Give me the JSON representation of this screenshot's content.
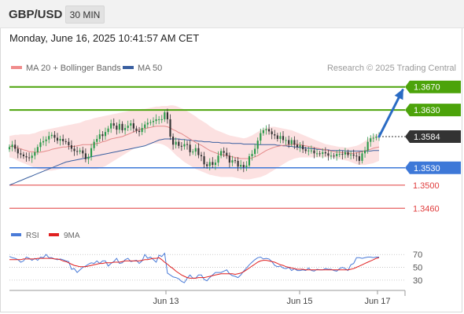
{
  "header": {
    "symbol": "GBP/USD",
    "interval": "30 MIN"
  },
  "timestamp": "Monday, June 16, 2025 10:41:57 AM CET",
  "legend": {
    "ma20": {
      "label": "MA 20 + Bollinger Bands",
      "color": "#f08c8c"
    },
    "ma50": {
      "label": "MA 50",
      "color": "#3a5fa0"
    },
    "source": "Research © 2025 Trading Central"
  },
  "indicator_legend": {
    "rsi": {
      "label": "RSI",
      "color": "#4a7bd8"
    },
    "ma9": {
      "label": "9MA",
      "color": "#e02020"
    }
  },
  "chart_data": [
    {
      "type": "candlestick",
      "x_ticks": [
        "Jun 13",
        "Jun 15",
        "Jun 17"
      ],
      "ylim": [
        1.344,
        1.369
      ],
      "current_price": 1.3584,
      "levels": [
        {
          "value": 1.367,
          "label": "1.3670",
          "role": "resistance",
          "color": "#4ca30a"
        },
        {
          "value": 1.363,
          "label": "1.3630",
          "role": "resistance",
          "color": "#4ca30a"
        },
        {
          "value": 1.3584,
          "label": "1.3584",
          "role": "current",
          "color": "#333333"
        },
        {
          "value": 1.353,
          "label": "1.3530",
          "role": "pivot",
          "color": "#3d78d8"
        },
        {
          "value": 1.35,
          "label": "1.3500",
          "role": "support",
          "color": "#e03c3c"
        },
        {
          "value": 1.346,
          "label": "1.3460",
          "role": "support",
          "color": "#e03c3c"
        }
      ],
      "forecast_arrow": {
        "from": 1.3584,
        "to": 1.367,
        "color": "#2a6bc4"
      },
      "close": [
        1.3566,
        1.357,
        1.3563,
        1.3555,
        1.3553,
        1.355,
        1.3548,
        1.3547,
        1.3551,
        1.3557,
        1.3566,
        1.3574,
        1.3576,
        1.3579,
        1.3585,
        1.3587,
        1.3582,
        1.3577,
        1.358,
        1.3576,
        1.3575,
        1.3569,
        1.3563,
        1.3559,
        1.3558,
        1.356,
        1.3555,
        1.3545,
        1.3549,
        1.3564,
        1.3575,
        1.358,
        1.3588,
        1.3585,
        1.3592,
        1.3598,
        1.3607,
        1.3603,
        1.3596,
        1.3606,
        1.3595,
        1.3599,
        1.3603,
        1.3607,
        1.3598,
        1.3594,
        1.3592,
        1.3599,
        1.3605,
        1.3608,
        1.3609,
        1.3611,
        1.3614,
        1.3614,
        1.3614,
        1.3626,
        1.3614,
        1.3584,
        1.357,
        1.3575,
        1.3568,
        1.3567,
        1.3571,
        1.357,
        1.3557,
        1.3558,
        1.3564,
        1.3552,
        1.355,
        1.3536,
        1.3533,
        1.354,
        1.3535,
        1.3539,
        1.3551,
        1.3559,
        1.3556,
        1.3551,
        1.3539,
        1.3543,
        1.3542,
        1.3532,
        1.3535,
        1.3531,
        1.3534,
        1.355,
        1.3554,
        1.3563,
        1.3577,
        1.359,
        1.3595,
        1.3597,
        1.3593,
        1.3588,
        1.3586,
        1.358,
        1.3585,
        1.3578,
        1.3578,
        1.3571,
        1.3578,
        1.357,
        1.3566,
        1.3569,
        1.3562,
        1.3559,
        1.356,
        1.356,
        1.3555,
        1.3555,
        1.3554,
        1.3557,
        1.3555,
        1.3551,
        1.3551,
        1.355,
        1.3554,
        1.3554,
        1.3553,
        1.3557,
        1.3552,
        1.3553,
        1.3551,
        1.355,
        1.3542,
        1.3555,
        1.356,
        1.3575,
        1.3581,
        1.3582,
        1.3584,
        1.3585
      ],
      "ma20": [
        1.3567,
        1.3567,
        1.3566,
        1.3564,
        1.3563,
        1.3561,
        1.356,
        1.3558,
        1.3558,
        1.3557,
        1.3557,
        1.3557,
        1.3558,
        1.3559,
        1.356,
        1.3562,
        1.3563,
        1.3564,
        1.3565,
        1.3566,
        1.3566,
        1.3567,
        1.3567,
        1.3567,
        1.3568,
        1.3569,
        1.357,
        1.357,
        1.357,
        1.357,
        1.3571,
        1.3572,
        1.3573,
        1.3575,
        1.3576,
        1.3578,
        1.358,
        1.3581,
        1.3582,
        1.3583,
        1.3584,
        1.3586,
        1.3588,
        1.359,
        1.3592,
        1.3594,
        1.3596,
        1.3597,
        1.3598,
        1.3599,
        1.36,
        1.3601,
        1.3602,
        1.3602,
        1.3602,
        1.3602,
        1.3601,
        1.3599,
        1.3596,
        1.3594,
        1.3591,
        1.3589,
        1.3586,
        1.3583,
        1.358,
        1.3577,
        1.3574,
        1.3571,
        1.3569,
        1.3566,
        1.3563,
        1.356,
        1.3558,
        1.3556,
        1.3554,
        1.3553,
        1.3552,
        1.3551,
        1.355,
        1.3549,
        1.3548,
        1.3547,
        1.3546,
        1.3546,
        1.3546,
        1.3546,
        1.3547,
        1.3549,
        1.3551,
        1.3554,
        1.3557,
        1.356,
        1.3562,
        1.3564,
        1.3566,
        1.3567,
        1.3568,
        1.3569,
        1.3569,
        1.357,
        1.357,
        1.3571,
        1.3571,
        1.357,
        1.3569,
        1.3568,
        1.3567,
        1.3566,
        1.3565,
        1.3564,
        1.3563,
        1.3562,
        1.3561,
        1.356,
        1.3559,
        1.3558,
        1.3557,
        1.3557,
        1.3556,
        1.3556,
        1.3555,
        1.3555,
        1.3555,
        1.3556,
        1.3557,
        1.3558,
        1.3559,
        1.3561,
        1.3562,
        1.3564,
        1.3565,
        1.3566
      ],
      "bb_upper": [
        1.3585,
        1.3586,
        1.3587,
        1.3587,
        1.3588,
        1.3588,
        1.3588,
        1.3588,
        1.3589,
        1.359,
        1.3592,
        1.3594,
        1.3595,
        1.3596,
        1.3597,
        1.3598,
        1.3599,
        1.36,
        1.3601,
        1.3602,
        1.3603,
        1.3604,
        1.3605,
        1.3606,
        1.3607,
        1.3608,
        1.361,
        1.3612,
        1.3613,
        1.3614,
        1.3616,
        1.3617,
        1.3618,
        1.3619,
        1.362,
        1.3621,
        1.3622,
        1.3623,
        1.3624,
        1.3625,
        1.3626,
        1.3627,
        1.3628,
        1.3629,
        1.363,
        1.3631,
        1.3631,
        1.3632,
        1.3632,
        1.3633,
        1.3634,
        1.3635,
        1.3636,
        1.3636,
        1.3637,
        1.3637,
        1.3637,
        1.3638,
        1.3638,
        1.3637,
        1.3635,
        1.3633,
        1.3631,
        1.3628,
        1.3625,
        1.3622,
        1.3619,
        1.3615,
        1.3612,
        1.3609,
        1.3606,
        1.3602,
        1.3599,
        1.3596,
        1.3594,
        1.3592,
        1.359,
        1.3588,
        1.3586,
        1.3585,
        1.3584,
        1.3583,
        1.3582,
        1.3581,
        1.3582,
        1.3584,
        1.3586,
        1.3589,
        1.3592,
        1.3595,
        1.3597,
        1.3599,
        1.36,
        1.3601,
        1.3601,
        1.36,
        1.3599,
        1.3598,
        1.3597,
        1.3596,
        1.3595,
        1.3593,
        1.3591,
        1.3589,
        1.3587,
        1.3585,
        1.3583,
        1.3581,
        1.3579,
        1.3577,
        1.3575,
        1.3573,
        1.3571,
        1.357,
        1.3569,
        1.3568,
        1.3567,
        1.3566,
        1.3566,
        1.3565,
        1.3565,
        1.3566,
        1.3567,
        1.3568,
        1.357,
        1.3573,
        1.3576,
        1.358,
        1.3583,
        1.3586,
        1.3588,
        1.359
      ],
      "bb_lower": [
        1.3548,
        1.3547,
        1.3545,
        1.3542,
        1.354,
        1.3538,
        1.3536,
        1.3534,
        1.3532,
        1.353,
        1.3528,
        1.3527,
        1.3526,
        1.3525,
        1.3525,
        1.3525,
        1.3526,
        1.3527,
        1.3528,
        1.3529,
        1.353,
        1.353,
        1.353,
        1.353,
        1.353,
        1.3531,
        1.3531,
        1.353,
        1.3529,
        1.3528,
        1.3528,
        1.3528,
        1.3529,
        1.3531,
        1.3533,
        1.3536,
        1.3539,
        1.3542,
        1.3545,
        1.3548,
        1.3551,
        1.3554,
        1.3557,
        1.356,
        1.3563,
        1.3565,
        1.3567,
        1.3568,
        1.3569,
        1.357,
        1.3571,
        1.3572,
        1.3572,
        1.3572,
        1.3571,
        1.3569,
        1.3566,
        1.3562,
        1.3557,
        1.3552,
        1.3548,
        1.3544,
        1.354,
        1.3537,
        1.3534,
        1.3531,
        1.3528,
        1.3526,
        1.3524,
        1.3522,
        1.352,
        1.3518,
        1.3517,
        1.3516,
        1.3515,
        1.3514,
        1.3514,
        1.3514,
        1.3514,
        1.3514,
        1.3513,
        1.3512,
        1.3511,
        1.351,
        1.351,
        1.351,
        1.3511,
        1.3512,
        1.3513,
        1.3514,
        1.3516,
        1.3518,
        1.3521,
        1.3524,
        1.3527,
        1.353,
        1.3533,
        1.3536,
        1.3539,
        1.3542,
        1.3544,
        1.3546,
        1.3547,
        1.3548,
        1.3548,
        1.3548,
        1.3548,
        1.3548,
        1.3548,
        1.3548,
        1.3548,
        1.3548,
        1.3548,
        1.3548,
        1.3548,
        1.3547,
        1.3546,
        1.3545,
        1.3544,
        1.3543,
        1.3542,
        1.354,
        1.3538,
        1.3536,
        1.3535,
        1.3535,
        1.3535,
        1.3536,
        1.3537,
        1.3538,
        1.354,
        1.3542
      ],
      "ma50": [
        1.35,
        1.3502,
        1.3504,
        1.3506,
        1.3508,
        1.351,
        1.3512,
        1.3514,
        1.3516,
        1.3518,
        1.352,
        1.3522,
        1.3524,
        1.3526,
        1.3528,
        1.353,
        1.3532,
        1.3534,
        1.3536,
        1.3538,
        1.354,
        1.3541,
        1.3542,
        1.3543,
        1.3544,
        1.3545,
        1.3546,
        1.3547,
        1.3548,
        1.3549,
        1.355,
        1.3551,
        1.3552,
        1.3553,
        1.3554,
        1.3555,
        1.3556,
        1.3557,
        1.3558,
        1.3559,
        1.356,
        1.3561,
        1.3562,
        1.3563,
        1.3564,
        1.3565,
        1.3566,
        1.3567,
        1.3568,
        1.357,
        1.3572,
        1.3574,
        1.3576,
        1.3578,
        1.3579,
        1.358,
        1.358,
        1.358,
        1.358,
        1.358,
        1.358,
        1.3579,
        1.3579,
        1.3578,
        1.3578,
        1.3577,
        1.3577,
        1.3576,
        1.3576,
        1.3575,
        1.3575,
        1.3575,
        1.3574,
        1.3574,
        1.3574,
        1.3573,
        1.3573,
        1.3573,
        1.3573,
        1.3572,
        1.3572,
        1.3572,
        1.3572,
        1.3571,
        1.3571,
        1.3571,
        1.3571,
        1.3571,
        1.357,
        1.357,
        1.357,
        1.357,
        1.357,
        1.357,
        1.357,
        1.3569,
        1.3569,
        1.3568,
        1.3568,
        1.3567,
        1.3567,
        1.3566,
        1.3566,
        1.3565,
        1.3565,
        1.3564,
        1.3564,
        1.3563,
        1.3563,
        1.3562,
        1.3562,
        1.3561,
        1.3561,
        1.3561,
        1.356,
        1.356,
        1.356,
        1.356,
        1.356,
        1.3559,
        1.3559,
        1.3559,
        1.3559,
        1.3559,
        1.3559,
        1.3559,
        1.3559,
        1.3559,
        1.3559,
        1.356,
        1.356,
        1.356
      ]
    },
    {
      "type": "line",
      "y_ticks": [
        "70",
        "50",
        "30"
      ],
      "ylim": [
        20,
        85
      ],
      "series": [
        {
          "name": "RSI",
          "values": [
            67,
            65,
            64,
            62,
            58,
            60,
            66,
            64,
            61,
            64,
            61,
            66,
            65,
            70,
            65,
            65,
            63,
            62,
            63,
            62,
            60,
            59,
            47,
            48,
            42,
            46,
            50,
            52,
            55,
            57,
            56,
            60,
            56,
            60,
            60,
            52,
            56,
            59,
            64,
            56,
            57,
            62,
            64,
            59,
            60,
            61,
            56,
            60,
            70,
            64,
            66,
            62,
            58,
            69,
            67,
            72,
            41,
            38,
            35,
            34,
            32,
            28,
            26,
            33,
            38,
            33,
            33,
            38,
            38,
            31,
            29,
            34,
            38,
            42,
            42,
            42,
            44,
            46,
            40,
            37,
            36,
            34,
            38,
            44,
            49,
            54,
            58,
            62,
            65,
            66,
            63,
            64,
            63,
            59,
            53,
            51,
            52,
            49,
            48,
            50,
            45,
            48,
            45,
            45,
            46,
            45,
            49,
            45,
            44,
            47,
            46,
            46,
            48,
            47,
            47,
            45,
            44,
            48,
            50,
            48,
            45,
            54,
            56,
            65,
            65,
            64,
            65,
            66,
            66,
            65,
            66,
            66
          ]
        },
        {
          "name": "9MA",
          "values": [
            62,
            62,
            62,
            62,
            62,
            63,
            63,
            63,
            63,
            63,
            64,
            64,
            64,
            64,
            64,
            64,
            63,
            63,
            62,
            60,
            59,
            57,
            55,
            53,
            52,
            51,
            51,
            51,
            52,
            53,
            54,
            55,
            56,
            56,
            57,
            57,
            57,
            58,
            58,
            58,
            59,
            60,
            60,
            60,
            60,
            60,
            60,
            61,
            62,
            62,
            63,
            64,
            64,
            65,
            62,
            58,
            55,
            51,
            48,
            44,
            41,
            38,
            36,
            34,
            33,
            33,
            33,
            34,
            34,
            34,
            35,
            36,
            37,
            38,
            39,
            40,
            40,
            40,
            40,
            40,
            39,
            40,
            41,
            43,
            46,
            49,
            52,
            55,
            58,
            60,
            61,
            61,
            60,
            59,
            58,
            56,
            54,
            53,
            51,
            50,
            49,
            48,
            47,
            47,
            47,
            46,
            46,
            46,
            46,
            46,
            46,
            46,
            46,
            46,
            46,
            46,
            46,
            46,
            46,
            46,
            46,
            47,
            48,
            50,
            52,
            54,
            56,
            58,
            60,
            62,
            64,
            65
          ]
        }
      ]
    }
  ]
}
